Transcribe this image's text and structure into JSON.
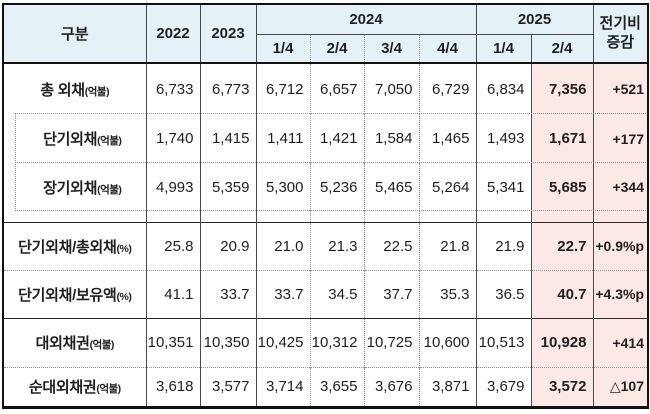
{
  "header": {
    "category": "구분",
    "col_2022": "2022",
    "col_2023": "2023",
    "group_2024": "2024",
    "group_2025": "2025",
    "q2024": [
      "1/4",
      "2/4",
      "3/4",
      "4/4"
    ],
    "q2025": [
      "1/4",
      "2/4"
    ],
    "change_line1": "전기비",
    "change_line2": "증감"
  },
  "colors": {
    "header_bg": "#e4f1f7",
    "highlight_bg": "#fce9e6",
    "border_outer": "#111111",
    "border_solid": "#4a4a4a",
    "border_dotted": "#909090"
  },
  "rows": [
    {
      "label": "총 외채",
      "unit": "(억불)",
      "values": [
        "6,733",
        "6,773",
        "6,712",
        "6,657",
        "7,050",
        "6,729",
        "6,834"
      ],
      "highlight": "7,356",
      "change": "+521"
    },
    {
      "label": "단기외채",
      "unit": "(억불)",
      "values": [
        "1,740",
        "1,415",
        "1,411",
        "1,421",
        "1,584",
        "1,465",
        "1,493"
      ],
      "highlight": "1,671",
      "change": "+177"
    },
    {
      "label": "장기외채",
      "unit": "(억불)",
      "values": [
        "4,993",
        "5,359",
        "5,300",
        "5,236",
        "5,465",
        "5,264",
        "5,341"
      ],
      "highlight": "5,685",
      "change": "+344"
    },
    {
      "label": "단기외채/총외채",
      "unit": "(%)",
      "values": [
        "25.8",
        "20.9",
        "21.0",
        "21.3",
        "22.5",
        "21.8",
        "21.9"
      ],
      "highlight": "22.7",
      "change": "+0.9%p"
    },
    {
      "label": "단기외채/보유액",
      "unit": "(%)",
      "values": [
        "41.1",
        "33.7",
        "33.7",
        "34.5",
        "37.7",
        "35.3",
        "36.5"
      ],
      "highlight": "40.7",
      "change": "+4.3%p"
    },
    {
      "label": "대외채권",
      "unit": "(억불)",
      "values": [
        "10,351",
        "10,350",
        "10,425",
        "10,312",
        "10,725",
        "10,600",
        "10,513"
      ],
      "highlight": "10,928",
      "change": "+414"
    },
    {
      "label": "순대외채권",
      "unit": "(억불)",
      "values": [
        "3,618",
        "3,577",
        "3,714",
        "3,655",
        "3,676",
        "3,871",
        "3,679"
      ],
      "highlight": "3,572",
      "change": "△107"
    }
  ]
}
